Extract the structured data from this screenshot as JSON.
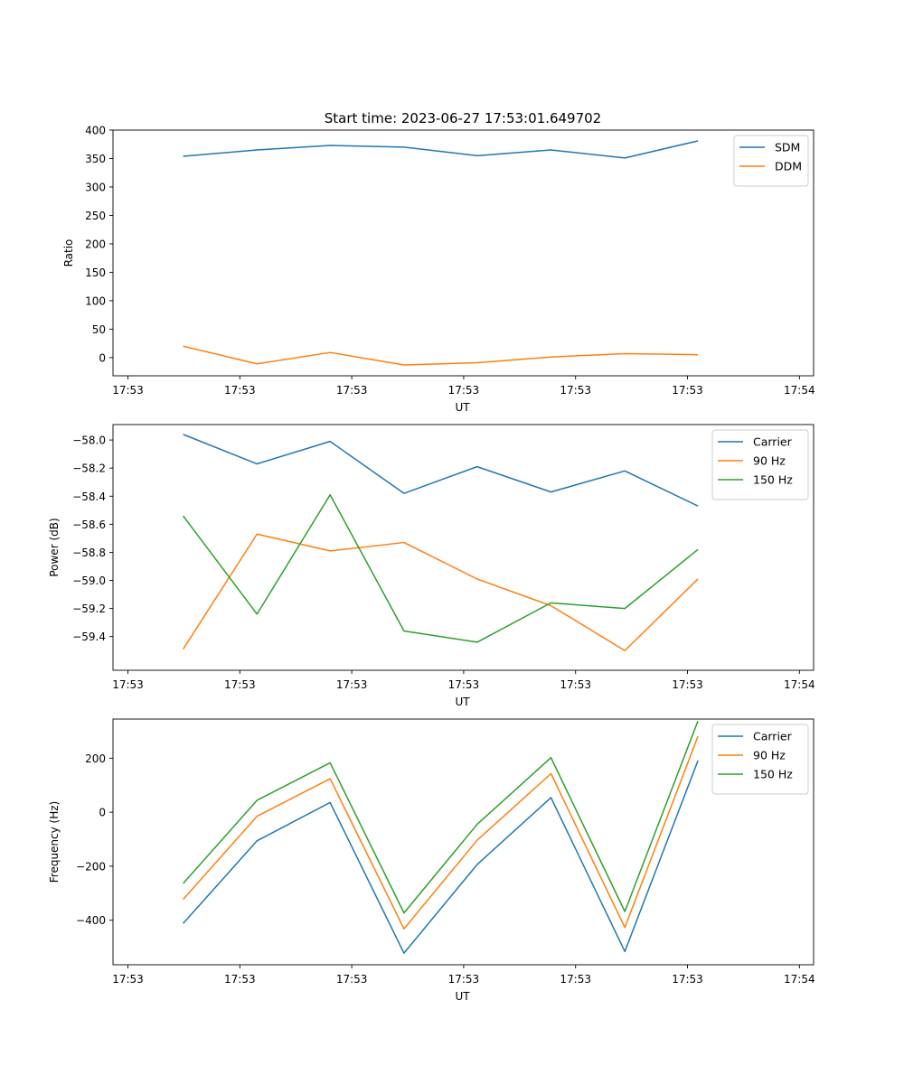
{
  "figure": {
    "title": "Start time: 2023-06-27 17:53:01.649702"
  },
  "chart_data": [
    {
      "type": "line",
      "xlabel": "UT",
      "ylabel": "Ratio",
      "xlim": [
        0,
        9.39
      ],
      "ylim": [
        -32,
        400
      ],
      "x_ticks": [
        0.2,
        1.7,
        3.2,
        4.7,
        6.2,
        7.7,
        9.2
      ],
      "x_tick_labels": [
        "17:53",
        "17:53",
        "17:53",
        "17:53",
        "17:53",
        "17:53",
        "17:54"
      ],
      "y_ticks": [
        0,
        50,
        100,
        150,
        200,
        250,
        300,
        350,
        400
      ],
      "y_tick_labels": [
        "0",
        "50",
        "100",
        "150",
        "200",
        "250",
        "300",
        "350",
        "400"
      ],
      "legend_position": "top-right",
      "grid": false,
      "x": [
        0.94,
        1.93,
        2.91,
        3.9,
        4.88,
        5.87,
        6.86,
        7.84
      ],
      "series": [
        {
          "name": "SDM",
          "color": "#1f77b4",
          "values": [
            354,
            365,
            373,
            370,
            355,
            365,
            351,
            381
          ]
        },
        {
          "name": "DDM",
          "color": "#ff7f0e",
          "values": [
            20,
            -11,
            9,
            -13,
            -9,
            1,
            7,
            5
          ]
        }
      ]
    },
    {
      "type": "line",
      "xlabel": "UT",
      "ylabel": "Power (dB)",
      "xlim": [
        0,
        9.39
      ],
      "ylim": [
        -59.64,
        -57.89
      ],
      "x_ticks": [
        0.2,
        1.7,
        3.2,
        4.7,
        6.2,
        7.7,
        9.2
      ],
      "x_tick_labels": [
        "17:53",
        "17:53",
        "17:53",
        "17:53",
        "17:53",
        "17:53",
        "17:54"
      ],
      "y_ticks": [
        -59.4,
        -59.2,
        -59.0,
        -58.8,
        -58.6,
        -58.4,
        -58.2,
        -58.0
      ],
      "y_tick_labels": [
        "−59.4",
        "−59.2",
        "−59.0",
        "−58.8",
        "−58.6",
        "−58.4",
        "−58.2",
        "−58.0"
      ],
      "legend_position": "top-right",
      "grid": false,
      "x": [
        0.94,
        1.93,
        2.91,
        3.9,
        4.88,
        5.87,
        6.86,
        7.84
      ],
      "series": [
        {
          "name": "Carrier",
          "color": "#1f77b4",
          "values": [
            -57.96,
            -58.17,
            -58.01,
            -58.38,
            -58.19,
            -58.37,
            -58.22,
            -58.47
          ]
        },
        {
          "name": "90 Hz",
          "color": "#ff7f0e",
          "values": [
            -59.49,
            -58.67,
            -58.79,
            -58.73,
            -58.99,
            -59.18,
            -59.5,
            -58.99
          ]
        },
        {
          "name": "150 Hz",
          "color": "#2ca02c",
          "values": [
            -58.54,
            -59.24,
            -58.39,
            -59.36,
            -59.44,
            -59.16,
            -59.2,
            -58.78
          ]
        }
      ]
    },
    {
      "type": "line",
      "xlabel": "UT",
      "ylabel": "Frequency (Hz)",
      "xlim": [
        0,
        9.39
      ],
      "ylim": [
        -565,
        345
      ],
      "x_ticks": [
        0.2,
        1.7,
        3.2,
        4.7,
        6.2,
        7.7,
        9.2
      ],
      "x_tick_labels": [
        "17:53",
        "17:53",
        "17:53",
        "17:53",
        "17:53",
        "17:53",
        "17:54"
      ],
      "y_ticks": [
        -400,
        -200,
        0,
        200
      ],
      "y_tick_labels": [
        "−400",
        "−200",
        "0",
        "200"
      ],
      "legend_position": "top-right",
      "grid": false,
      "x": [
        0.94,
        1.93,
        2.91,
        3.9,
        4.88,
        5.87,
        6.86,
        7.84
      ],
      "series": [
        {
          "name": "Carrier",
          "color": "#1f77b4",
          "values": [
            -412,
            -106,
            36,
            -522,
            -194,
            54,
            -516,
            191
          ]
        },
        {
          "name": "90 Hz",
          "color": "#ff7f0e",
          "values": [
            -323,
            -15,
            124,
            -432,
            -104,
            143,
            -427,
            281
          ]
        },
        {
          "name": "150 Hz",
          "color": "#2ca02c",
          "values": [
            -264,
            44,
            183,
            -373,
            -45,
            202,
            -368,
            338
          ]
        }
      ]
    }
  ]
}
